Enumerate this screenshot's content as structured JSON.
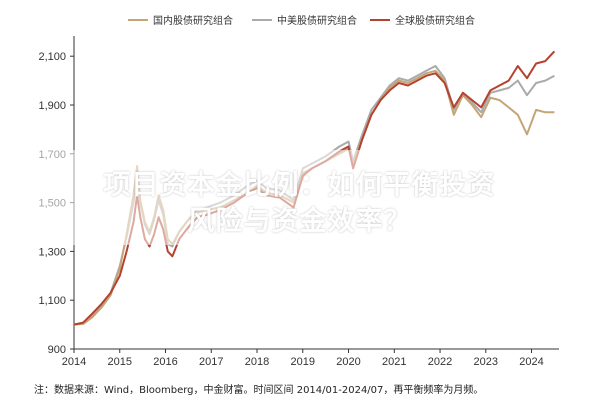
{
  "chart_data": {
    "type": "line",
    "legend": {
      "placement": "top-center"
    },
    "ylim": [
      900,
      2150
    ],
    "xlim": [
      2014.0,
      2024.6
    ],
    "y_ticks": [
      900,
      1100,
      1300,
      1500,
      1700,
      1900,
      2100
    ],
    "y_tick_labels": [
      "900",
      "1,100",
      "1,300",
      "1,500",
      "1,700",
      "1,900",
      "2,100"
    ],
    "x_ticks": [
      2014,
      2015,
      2016,
      2017,
      2018,
      2019,
      2020,
      2021,
      2022,
      2023,
      2024
    ],
    "x_tick_labels": [
      "2014",
      "2015",
      "2016",
      "2017",
      "2018",
      "2019",
      "2020",
      "2021",
      "2022",
      "2023",
      "2024"
    ],
    "grid": false,
    "series": [
      {
        "name": "国内股债研究组合",
        "color": "#c4a578",
        "points": [
          [
            2014.0,
            1000
          ],
          [
            2014.2,
            1003
          ],
          [
            2014.4,
            1030
          ],
          [
            2014.6,
            1070
          ],
          [
            2014.8,
            1120
          ],
          [
            2015.0,
            1230
          ],
          [
            2015.15,
            1370
          ],
          [
            2015.3,
            1530
          ],
          [
            2015.38,
            1650
          ],
          [
            2015.45,
            1510
          ],
          [
            2015.55,
            1420
          ],
          [
            2015.65,
            1380
          ],
          [
            2015.75,
            1440
          ],
          [
            2015.85,
            1530
          ],
          [
            2015.95,
            1470
          ],
          [
            2016.05,
            1350
          ],
          [
            2016.15,
            1330
          ],
          [
            2016.3,
            1380
          ],
          [
            2016.5,
            1430
          ],
          [
            2016.7,
            1460
          ],
          [
            2016.9,
            1470
          ],
          [
            2017.2,
            1480
          ],
          [
            2017.5,
            1510
          ],
          [
            2017.8,
            1540
          ],
          [
            2018.0,
            1570
          ],
          [
            2018.2,
            1540
          ],
          [
            2018.5,
            1530
          ],
          [
            2018.8,
            1500
          ],
          [
            2019.0,
            1620
          ],
          [
            2019.2,
            1640
          ],
          [
            2019.5,
            1670
          ],
          [
            2019.8,
            1700
          ],
          [
            2020.0,
            1720
          ],
          [
            2020.1,
            1660
          ],
          [
            2020.3,
            1760
          ],
          [
            2020.5,
            1860
          ],
          [
            2020.7,
            1920
          ],
          [
            2020.9,
            1970
          ],
          [
            2021.1,
            2000
          ],
          [
            2021.3,
            1990
          ],
          [
            2021.5,
            2010
          ],
          [
            2021.7,
            2030
          ],
          [
            2021.9,
            2040
          ],
          [
            2022.1,
            2000
          ],
          [
            2022.3,
            1860
          ],
          [
            2022.5,
            1940
          ],
          [
            2022.7,
            1900
          ],
          [
            2022.9,
            1850
          ],
          [
            2023.1,
            1930
          ],
          [
            2023.3,
            1920
          ],
          [
            2023.5,
            1890
          ],
          [
            2023.7,
            1860
          ],
          [
            2023.9,
            1780
          ],
          [
            2024.1,
            1880
          ],
          [
            2024.3,
            1870
          ],
          [
            2024.5,
            1870
          ]
        ]
      },
      {
        "name": "中美股债研究组合",
        "color": "#aaaaaa",
        "points": [
          [
            2014.0,
            1000
          ],
          [
            2014.2,
            1006
          ],
          [
            2014.4,
            1040
          ],
          [
            2014.6,
            1080
          ],
          [
            2014.8,
            1130
          ],
          [
            2015.0,
            1240
          ],
          [
            2015.15,
            1360
          ],
          [
            2015.3,
            1500
          ],
          [
            2015.38,
            1610
          ],
          [
            2015.45,
            1500
          ],
          [
            2015.55,
            1410
          ],
          [
            2015.65,
            1370
          ],
          [
            2015.75,
            1430
          ],
          [
            2015.85,
            1510
          ],
          [
            2015.95,
            1450
          ],
          [
            2016.05,
            1330
          ],
          [
            2016.15,
            1320
          ],
          [
            2016.3,
            1380
          ],
          [
            2016.5,
            1430
          ],
          [
            2016.7,
            1470
          ],
          [
            2016.9,
            1480
          ],
          [
            2017.2,
            1500
          ],
          [
            2017.5,
            1530
          ],
          [
            2017.8,
            1570
          ],
          [
            2018.0,
            1590
          ],
          [
            2018.2,
            1560
          ],
          [
            2018.5,
            1550
          ],
          [
            2018.8,
            1510
          ],
          [
            2019.0,
            1640
          ],
          [
            2019.2,
            1660
          ],
          [
            2019.5,
            1690
          ],
          [
            2019.8,
            1730
          ],
          [
            2020.0,
            1750
          ],
          [
            2020.1,
            1670
          ],
          [
            2020.3,
            1780
          ],
          [
            2020.5,
            1880
          ],
          [
            2020.7,
            1930
          ],
          [
            2020.9,
            1980
          ],
          [
            2021.1,
            2010
          ],
          [
            2021.3,
            2000
          ],
          [
            2021.5,
            2020
          ],
          [
            2021.7,
            2040
          ],
          [
            2021.9,
            2060
          ],
          [
            2022.1,
            2010
          ],
          [
            2022.3,
            1880
          ],
          [
            2022.5,
            1950
          ],
          [
            2022.7,
            1910
          ],
          [
            2022.9,
            1870
          ],
          [
            2023.1,
            1950
          ],
          [
            2023.3,
            1960
          ],
          [
            2023.5,
            1970
          ],
          [
            2023.7,
            2000
          ],
          [
            2023.9,
            1940
          ],
          [
            2024.1,
            1990
          ],
          [
            2024.3,
            2000
          ],
          [
            2024.5,
            2020
          ]
        ]
      },
      {
        "name": "全球股债研究组合",
        "color": "#b5422e",
        "points": [
          [
            2014.0,
            1000
          ],
          [
            2014.2,
            1008
          ],
          [
            2014.4,
            1045
          ],
          [
            2014.6,
            1085
          ],
          [
            2014.8,
            1130
          ],
          [
            2015.0,
            1200
          ],
          [
            2015.15,
            1300
          ],
          [
            2015.3,
            1420
          ],
          [
            2015.38,
            1530
          ],
          [
            2015.45,
            1440
          ],
          [
            2015.55,
            1350
          ],
          [
            2015.65,
            1320
          ],
          [
            2015.75,
            1370
          ],
          [
            2015.85,
            1440
          ],
          [
            2015.95,
            1390
          ],
          [
            2016.05,
            1300
          ],
          [
            2016.15,
            1280
          ],
          [
            2016.3,
            1350
          ],
          [
            2016.5,
            1400
          ],
          [
            2016.7,
            1440
          ],
          [
            2016.9,
            1450
          ],
          [
            2017.2,
            1470
          ],
          [
            2017.5,
            1500
          ],
          [
            2017.8,
            1540
          ],
          [
            2018.0,
            1560
          ],
          [
            2018.2,
            1530
          ],
          [
            2018.5,
            1520
          ],
          [
            2018.8,
            1480
          ],
          [
            2019.0,
            1610
          ],
          [
            2019.2,
            1640
          ],
          [
            2019.5,
            1670
          ],
          [
            2019.8,
            1710
          ],
          [
            2020.0,
            1730
          ],
          [
            2020.1,
            1640
          ],
          [
            2020.3,
            1760
          ],
          [
            2020.5,
            1860
          ],
          [
            2020.7,
            1920
          ],
          [
            2020.9,
            1960
          ],
          [
            2021.1,
            1990
          ],
          [
            2021.3,
            1980
          ],
          [
            2021.5,
            2000
          ],
          [
            2021.7,
            2020
          ],
          [
            2021.9,
            2030
          ],
          [
            2022.1,
            1990
          ],
          [
            2022.3,
            1890
          ],
          [
            2022.5,
            1950
          ],
          [
            2022.7,
            1920
          ],
          [
            2022.9,
            1890
          ],
          [
            2023.1,
            1960
          ],
          [
            2023.3,
            1980
          ],
          [
            2023.5,
            2000
          ],
          [
            2023.7,
            2060
          ],
          [
            2023.9,
            2010
          ],
          [
            2024.1,
            2070
          ],
          [
            2024.3,
            2080
          ],
          [
            2024.5,
            2120
          ]
        ]
      }
    ]
  },
  "note": "注：数据来源：Wind，Bloomberg，中金财富。时间区间 2014/01-2024/07，再平衡频率为月频。",
  "overlay": {
    "line1": "项目资本金比例：如何平衡投资",
    "line2": "风险与资金效率？"
  }
}
